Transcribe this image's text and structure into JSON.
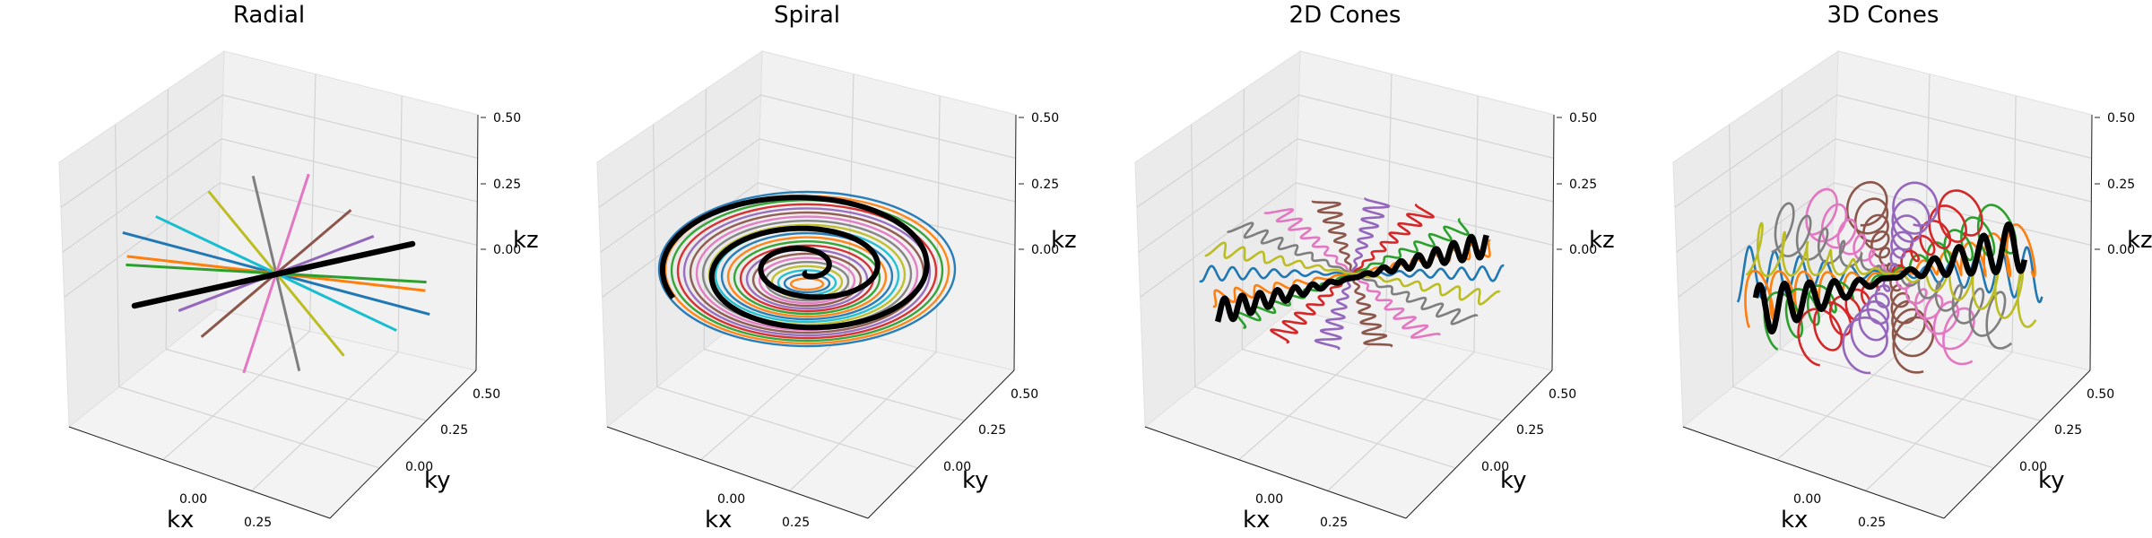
{
  "chart_data": [
    {
      "type": "line",
      "title": "Radial",
      "xlabel": "kx",
      "ylabel": "ky",
      "zlabel": "kz",
      "x_ticks": [
        "0.00",
        "0.25"
      ],
      "y_ticks": [
        "0.00",
        "0.25",
        "0.50"
      ],
      "z_ticks": [
        "0.00",
        "0.25",
        "0.50"
      ],
      "grid": true,
      "trajectory": "radial",
      "highlight_color": "#000000"
    },
    {
      "type": "line",
      "title": "Spiral",
      "xlabel": "kx",
      "ylabel": "ky",
      "zlabel": "kz",
      "x_ticks": [
        "0.00",
        "0.25"
      ],
      "y_ticks": [
        "0.00",
        "0.25",
        "0.50"
      ],
      "z_ticks": [
        "0.00",
        "0.25",
        "0.50"
      ],
      "grid": true,
      "trajectory": "spiral",
      "highlight_color": "#000000"
    },
    {
      "type": "line",
      "title": "2D Cones",
      "xlabel": "kx",
      "ylabel": "ky",
      "zlabel": "kz",
      "x_ticks": [
        "0.00",
        "0.25"
      ],
      "y_ticks": [
        "0.00",
        "0.25",
        "0.50"
      ],
      "z_ticks": [
        "0.00",
        "0.25",
        "0.50"
      ],
      "grid": true,
      "trajectory": "cones2d",
      "highlight_color": "#000000"
    },
    {
      "type": "line",
      "title": "3D Cones",
      "xlabel": "kx",
      "ylabel": "ky",
      "zlabel": "kz",
      "x_ticks": [
        "0.00",
        "0.25"
      ],
      "y_ticks": [
        "0.00",
        "0.25",
        "0.50"
      ],
      "z_ticks": [
        "0.00",
        "0.25",
        "0.50"
      ],
      "grid": true,
      "trajectory": "cones3d",
      "highlight_color": "#000000"
    }
  ],
  "colors": [
    "#1f77b4",
    "#ff7f0e",
    "#2ca02c",
    "#d62728",
    "#9467bd",
    "#8c564b",
    "#e377c2",
    "#7f7f7f",
    "#bcbd22",
    "#17becf"
  ]
}
